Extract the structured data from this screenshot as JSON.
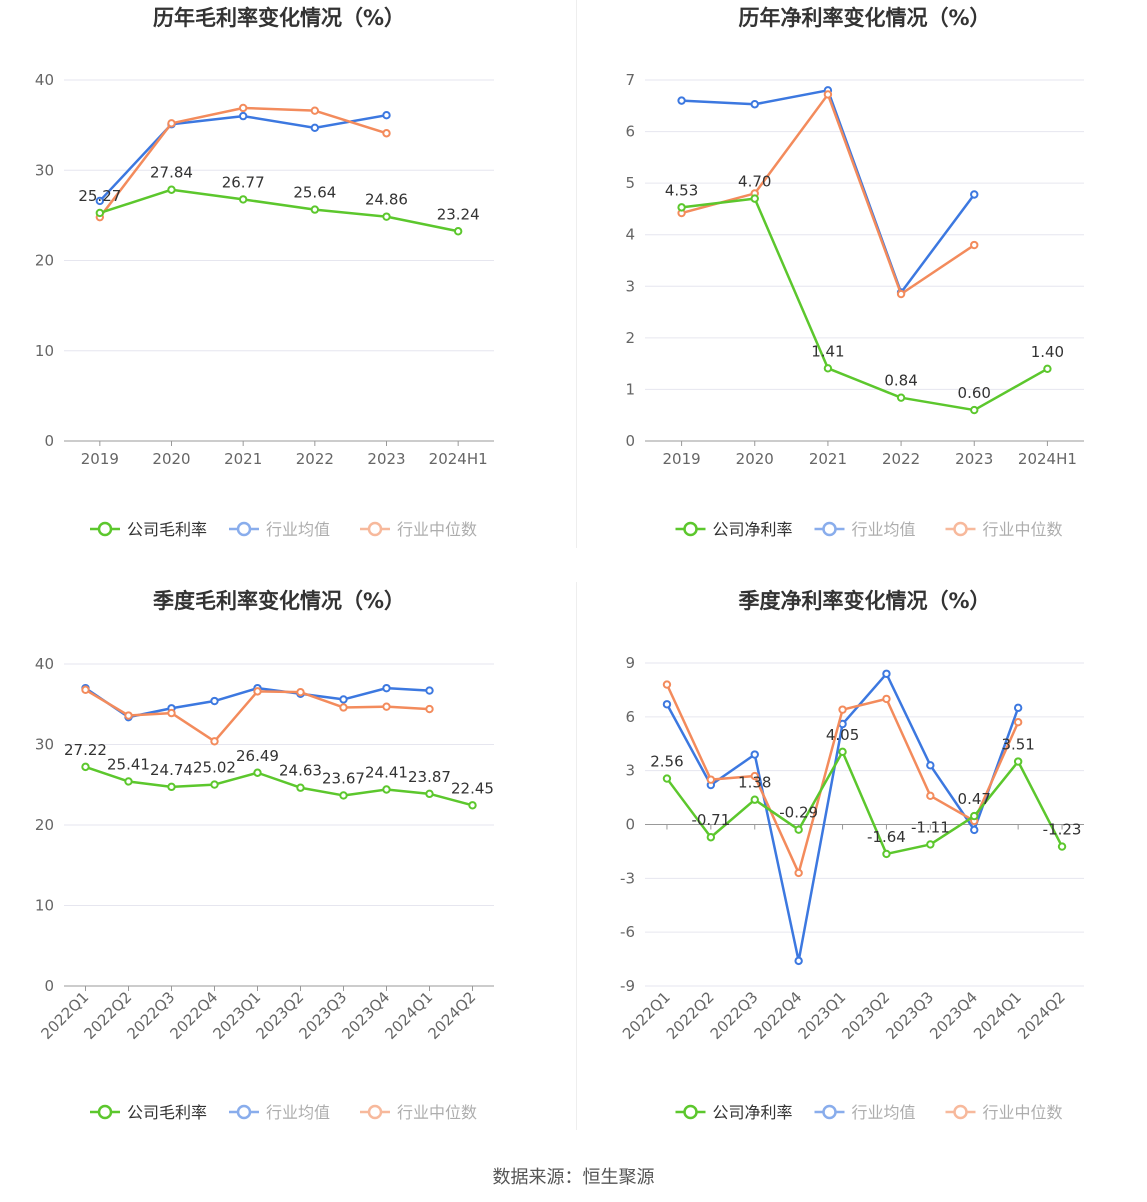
{
  "source_prefix": "数据来源：",
  "source_name": "恒生聚源",
  "colors": {
    "company": "#5cc72d",
    "avg": "#3c78e0",
    "median": "#f38b5c",
    "grid": "#e6e6ef",
    "axis": "#666666",
    "text": "#333333"
  },
  "chart_data": [
    {
      "type": "line",
      "title": "历年毛利率变化情况（%）",
      "categories": [
        "2019",
        "2020",
        "2021",
        "2022",
        "2023",
        "2024H1"
      ],
      "ylim": [
        0,
        40
      ],
      "yticks": [
        0,
        10,
        20,
        30,
        40
      ],
      "series": [
        {
          "name": "公司毛利率",
          "key": "company",
          "values": [
            25.27,
            27.84,
            26.77,
            25.64,
            24.86,
            23.24
          ],
          "labels": true
        },
        {
          "name": "行业均值",
          "key": "avg",
          "values": [
            26.6,
            35.1,
            36.0,
            34.7,
            36.1,
            null
          ]
        },
        {
          "name": "行业中位数",
          "key": "median",
          "values": [
            24.8,
            35.2,
            36.9,
            36.6,
            34.1,
            null
          ]
        }
      ]
    },
    {
      "type": "line",
      "title": "历年净利率变化情况（%）",
      "categories": [
        "2019",
        "2020",
        "2021",
        "2022",
        "2023",
        "2024H1"
      ],
      "ylim": [
        0,
        7
      ],
      "yticks": [
        0,
        1,
        2,
        3,
        4,
        5,
        6,
        7
      ],
      "series": [
        {
          "name": "公司净利率",
          "key": "company",
          "values": [
            4.53,
            4.7,
            1.41,
            0.84,
            0.6,
            1.4
          ],
          "labels": true
        },
        {
          "name": "行业均值",
          "key": "avg",
          "values": [
            6.6,
            6.53,
            6.8,
            2.88,
            4.78,
            null
          ]
        },
        {
          "name": "行业中位数",
          "key": "median",
          "values": [
            4.42,
            4.8,
            6.72,
            2.85,
            3.8,
            null
          ]
        }
      ]
    },
    {
      "type": "line",
      "title": "季度毛利率变化情况（%）",
      "categories": [
        "2022Q1",
        "2022Q2",
        "2022Q3",
        "2022Q4",
        "2023Q1",
        "2023Q2",
        "2023Q3",
        "2023Q4",
        "2024Q1",
        "2024Q2"
      ],
      "ylim": [
        0,
        40
      ],
      "yticks": [
        0,
        10,
        20,
        30,
        40
      ],
      "series": [
        {
          "name": "公司毛利率",
          "key": "company",
          "values": [
            27.22,
            25.41,
            24.74,
            25.02,
            26.49,
            24.63,
            23.67,
            24.41,
            23.87,
            22.45
          ],
          "labels": true
        },
        {
          "name": "行业均值",
          "key": "avg",
          "values": [
            37.0,
            33.4,
            34.5,
            35.4,
            37.0,
            36.3,
            35.6,
            37.0,
            36.7,
            null
          ]
        },
        {
          "name": "行业中位数",
          "key": "median",
          "values": [
            36.8,
            33.6,
            33.9,
            30.4,
            36.6,
            36.5,
            34.6,
            34.7,
            34.4,
            null
          ]
        }
      ]
    },
    {
      "type": "line",
      "title": "季度净利率变化情况（%）",
      "categories": [
        "2022Q1",
        "2022Q2",
        "2022Q3",
        "2022Q4",
        "2023Q1",
        "2023Q2",
        "2023Q3",
        "2023Q4",
        "2024Q1",
        "2024Q2"
      ],
      "ylim": [
        -9,
        9
      ],
      "yticks": [
        -9,
        -6,
        -3,
        0,
        3,
        6,
        9
      ],
      "series": [
        {
          "name": "公司净利率",
          "key": "company",
          "values": [
            2.56,
            -0.71,
            1.38,
            -0.29,
            4.05,
            -1.64,
            -1.11,
            0.47,
            3.51,
            -1.23
          ],
          "labels": true
        },
        {
          "name": "行业均值",
          "key": "avg",
          "values": [
            6.7,
            2.2,
            3.9,
            -7.6,
            5.6,
            8.4,
            3.3,
            -0.3,
            6.5,
            null
          ]
        },
        {
          "name": "行业中位数",
          "key": "median",
          "values": [
            7.8,
            2.5,
            2.7,
            -2.7,
            6.4,
            7.0,
            1.6,
            0.2,
            5.7,
            null
          ]
        }
      ]
    }
  ]
}
